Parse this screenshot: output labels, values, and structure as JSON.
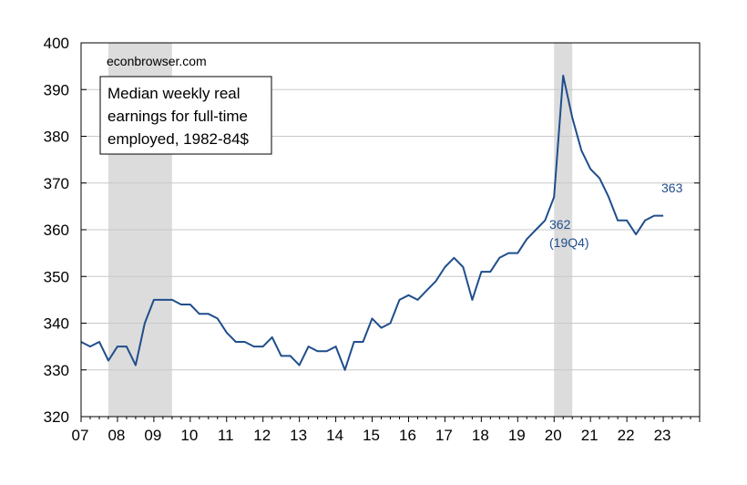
{
  "chart_data": {
    "type": "line",
    "source": "econbrowser.com",
    "legend_lines": [
      "Median weekly real",
      "earnings for full-time",
      "employed, 1982-84$"
    ],
    "ylim": [
      320,
      400
    ],
    "y_ticks": [
      320,
      330,
      340,
      350,
      360,
      370,
      380,
      390,
      400
    ],
    "xlim": [
      2007.0,
      2024.0
    ],
    "x_tick_labels": [
      {
        "x": 2007,
        "label": "07"
      },
      {
        "x": 2008,
        "label": "08"
      },
      {
        "x": 2009,
        "label": "09"
      },
      {
        "x": 2010,
        "label": "10"
      },
      {
        "x": 2011,
        "label": "11"
      },
      {
        "x": 2012,
        "label": "12"
      },
      {
        "x": 2013,
        "label": "13"
      },
      {
        "x": 2014,
        "label": "14"
      },
      {
        "x": 2015,
        "label": "15"
      },
      {
        "x": 2016,
        "label": "16"
      },
      {
        "x": 2017,
        "label": "17"
      },
      {
        "x": 2018,
        "label": "18"
      },
      {
        "x": 2019,
        "label": "19"
      },
      {
        "x": 2020,
        "label": "20"
      },
      {
        "x": 2021,
        "label": "21"
      },
      {
        "x": 2022,
        "label": "22"
      },
      {
        "x": 2023,
        "label": "23"
      }
    ],
    "grid": true,
    "line_color": "#1f4e8c",
    "recession_color": "#dcdcdc",
    "recessions": [
      {
        "start": "2007Q4",
        "end": "2009Q2"
      },
      {
        "start": "2020Q1",
        "end": "2020Q2"
      }
    ],
    "series": [
      {
        "color": "#1f4e8c",
        "x": [
          "2007Q1",
          "2007Q2",
          "2007Q3",
          "2007Q4",
          "2008Q1",
          "2008Q2",
          "2008Q3",
          "2008Q4",
          "2009Q1",
          "2009Q2",
          "2009Q3",
          "2009Q4",
          "2010Q1",
          "2010Q2",
          "2010Q3",
          "2010Q4",
          "2011Q1",
          "2011Q2",
          "2011Q3",
          "2011Q4",
          "2012Q1",
          "2012Q2",
          "2012Q3",
          "2012Q4",
          "2013Q1",
          "2013Q2",
          "2013Q3",
          "2013Q4",
          "2014Q1",
          "2014Q2",
          "2014Q3",
          "2014Q4",
          "2015Q1",
          "2015Q2",
          "2015Q3",
          "2015Q4",
          "2016Q1",
          "2016Q2",
          "2016Q3",
          "2016Q4",
          "2017Q1",
          "2017Q2",
          "2017Q3",
          "2017Q4",
          "2018Q1",
          "2018Q2",
          "2018Q3",
          "2018Q4",
          "2019Q1",
          "2019Q2",
          "2019Q3",
          "2019Q4",
          "2020Q1",
          "2020Q2",
          "2020Q3",
          "2020Q4",
          "2021Q1",
          "2021Q2",
          "2021Q3",
          "2021Q4",
          "2022Q1",
          "2022Q2",
          "2022Q3",
          "2022Q4",
          "2023Q1"
        ],
        "values": [
          336,
          335,
          336,
          332,
          335,
          335,
          331,
          340,
          345,
          345,
          345,
          344,
          344,
          342,
          342,
          341,
          338,
          336,
          336,
          335,
          335,
          337,
          333,
          333,
          331,
          335,
          334,
          334,
          335,
          330,
          336,
          336,
          341,
          339,
          340,
          345,
          346,
          345,
          347,
          349,
          352,
          354,
          352,
          345,
          351,
          351,
          354,
          355,
          355,
          358,
          360,
          362,
          367,
          393,
          384,
          377,
          373,
          371,
          367,
          362,
          362,
          359,
          362,
          363,
          363
        ]
      }
    ],
    "annotations": [
      {
        "text": "362",
        "x": "2019Q4",
        "y": 362
      },
      {
        "text": "(19Q4)",
        "x": "2019Q4",
        "y": 362
      },
      {
        "text": "363",
        "x": "2023Q1",
        "y": 363
      }
    ]
  }
}
